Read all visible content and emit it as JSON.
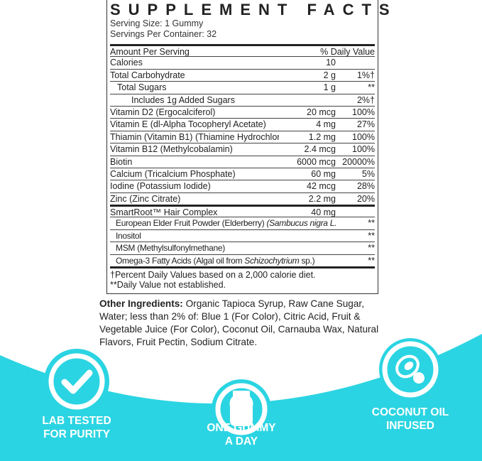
{
  "colors": {
    "accent": "#2bd4e2",
    "text": "#222222"
  },
  "label": {
    "title": "SUPPLEMENT FACTS",
    "serving_size": "Serving Size: 1 Gummy",
    "servings_per_container": "Servings Per Container: 32",
    "header": {
      "amount": "Amount Per Serving",
      "dv": "% Daily Value"
    },
    "rows": [
      {
        "name": "Calories",
        "amount": "10",
        "dv": ""
      },
      {
        "name": "Total Carbohydrate",
        "amount": "2 g",
        "dv": "1%†"
      },
      {
        "name": "Total Sugars",
        "amount": "1 g",
        "dv": "**"
      },
      {
        "name": "Includes 1g Added Sugars",
        "amount": "",
        "dv": "2%†"
      },
      {
        "name": "Vitamin D2 (Ergocalciferol)",
        "amount": "20 mcg",
        "dv": "100%"
      },
      {
        "name": "Vitamin E (dl-Alpha Tocopheryl Acetate)",
        "amount": "4 mg",
        "dv": "27%"
      },
      {
        "name": "Thiamin (Vitamin B1) (Thiamine Hydrochloride)",
        "amount": "1.2 mg",
        "dv": "100%"
      },
      {
        "name": "Vitamin B12 (Methylcobalamin)",
        "amount": "2.4 mcg",
        "dv": "100%"
      },
      {
        "name": "Biotin",
        "amount": "6000 mcg",
        "dv": "20000%"
      },
      {
        "name": "Calcium (Tricalcium Phosphate)",
        "amount": "60 mg",
        "dv": "5%"
      },
      {
        "name": "Iodine (Potassium Iodide)",
        "amount": "42 mcg",
        "dv": "28%"
      },
      {
        "name": "Zinc (Zinc Citrate)",
        "amount": "2.2 mg",
        "dv": "20%"
      }
    ],
    "complex": {
      "name": "SmartRoot™ Hair Complex",
      "amount": "40 mg"
    },
    "complex_items": [
      {
        "name": "European Elder Fruit Powder (Elderberry) ",
        "italic": "(Sambucus nigra L.)",
        "rest": "",
        "dv": "**"
      },
      {
        "name": "Inositol",
        "italic": "",
        "rest": "",
        "dv": "**"
      },
      {
        "name": "MSM (Methylsulfonylmethane)",
        "italic": "",
        "rest": "",
        "dv": "**"
      },
      {
        "name": "Omega-3 Fatty Acids (Algal oil from ",
        "italic": "Schizochytrium",
        "rest": " sp.)",
        "dv": "**"
      }
    ],
    "footnote1": "†Percent Daily Values based on a 2,000 calorie diet.",
    "footnote2": "**Daily Value not established."
  },
  "other_ingredients": {
    "label": "Other Ingredients:",
    "text": " Organic Tapioca Syrup, Raw Cane Sugar, Water; less than 2% of: Blue 1 (For Color), Citric Acid, Fruit & Vegetable Juice (For Color), Coconut Oil, Carnauba Wax, Natural Flavors, Fruit Pectin, Sodium Citrate."
  },
  "badges": [
    {
      "icon": "checkmark-icon",
      "line1": "LAB TESTED",
      "line2": "FOR PURITY"
    },
    {
      "icon": "gummy-bear-icon",
      "line1": "ONE GUMMY",
      "line2": "A DAY"
    },
    {
      "icon": "coconut-icon",
      "line1": "COCONUT OIL",
      "line2": "INFUSED"
    }
  ]
}
